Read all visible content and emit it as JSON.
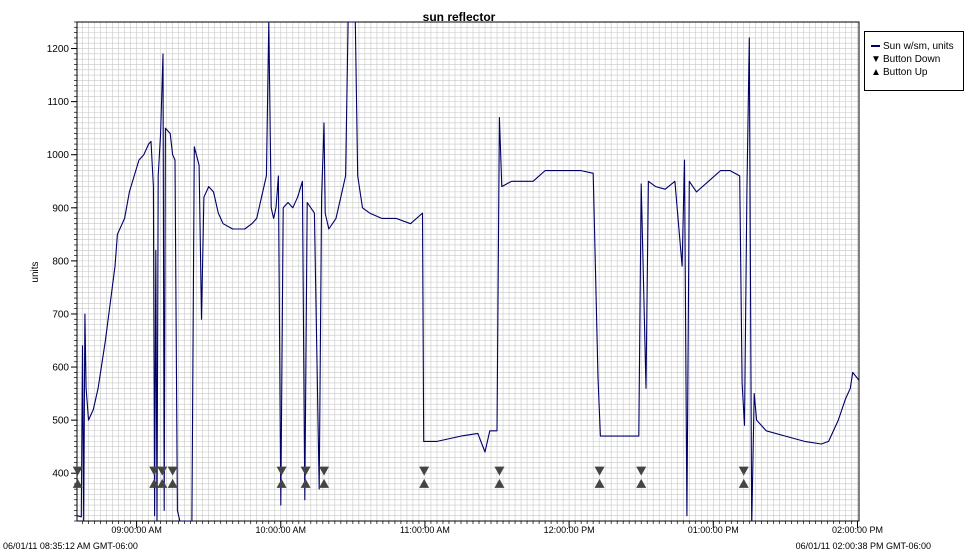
{
  "chart_data": {
    "type": "line",
    "title": "sun reflector",
    "ylabel": "units",
    "xlabel": "",
    "ylim": [
      310,
      1250
    ],
    "yticks": [
      400,
      500,
      600,
      700,
      800,
      900,
      1000,
      1100,
      1200
    ],
    "xlim": [
      "08:35:12",
      "14:00:38"
    ],
    "xticks": [
      {
        "t": "09:00:00",
        "label": "09:00:00 AM"
      },
      {
        "t": "10:00:00",
        "label": "10:00:00 AM"
      },
      {
        "t": "11:00:00",
        "label": "11:00:00 AM"
      },
      {
        "t": "12:00:00",
        "label": "12:00:00 PM"
      },
      {
        "t": "13:00:00",
        "label": "01:00:00 PM"
      },
      {
        "t": "14:00:00",
        "label": "02:00:00 PM"
      }
    ],
    "grid": true,
    "legend_position": "top-right",
    "colors": {
      "series": "#000066",
      "markers": "#444444",
      "grid": "#c8c8c8"
    },
    "series": [
      {
        "name": "Sun w/sm, units",
        "points": [
          [
            "08:35:12",
            320
          ],
          [
            "08:37:00",
            318
          ],
          [
            "08:37:30",
            640
          ],
          [
            "08:38:00",
            310
          ],
          [
            "08:38:30",
            700
          ],
          [
            "08:39:00",
            560
          ],
          [
            "08:40:00",
            500
          ],
          [
            "08:42:00",
            520
          ],
          [
            "08:44:00",
            560
          ],
          [
            "08:47:00",
            650
          ],
          [
            "08:49:00",
            720
          ],
          [
            "08:51:00",
            790
          ],
          [
            "08:52:00",
            850
          ],
          [
            "08:55:00",
            880
          ],
          [
            "08:57:00",
            930
          ],
          [
            "08:59:00",
            960
          ],
          [
            "09:01:00",
            990
          ],
          [
            "09:03:00",
            1000
          ],
          [
            "09:05:00",
            1020
          ],
          [
            "09:06:00",
            1025
          ],
          [
            "09:07:00",
            940
          ],
          [
            "09:07:30",
            320
          ],
          [
            "09:08:00",
            820
          ],
          [
            "09:08:30",
            310
          ],
          [
            "09:09:00",
            960
          ],
          [
            "09:10:00",
            1040
          ],
          [
            "09:11:00",
            1190
          ],
          [
            "09:11:30",
            330
          ],
          [
            "09:12:00",
            1050
          ],
          [
            "09:14:00",
            1040
          ],
          [
            "09:15:00",
            1000
          ],
          [
            "09:16:00",
            990
          ],
          [
            "09:17:00",
            330
          ],
          [
            "09:18:00",
            310
          ],
          [
            "09:23:00",
            310
          ],
          [
            "09:24:00",
            1015
          ],
          [
            "09:26:00",
            980
          ],
          [
            "09:27:00",
            690
          ],
          [
            "09:28:00",
            920
          ],
          [
            "09:30:00",
            940
          ],
          [
            "09:32:00",
            930
          ],
          [
            "09:34:00",
            890
          ],
          [
            "09:36:00",
            870
          ],
          [
            "09:40:00",
            860
          ],
          [
            "09:45:00",
            860
          ],
          [
            "09:48:00",
            870
          ],
          [
            "09:50:00",
            880
          ],
          [
            "09:52:00",
            920
          ],
          [
            "09:54:00",
            960
          ],
          [
            "09:55:00",
            1250
          ],
          [
            "09:56:00",
            900
          ],
          [
            "09:57:00",
            880
          ],
          [
            "09:58:00",
            900
          ],
          [
            "09:59:00",
            960
          ],
          [
            "10:00:00",
            340
          ],
          [
            "10:01:00",
            900
          ],
          [
            "10:03:00",
            910
          ],
          [
            "10:05:00",
            900
          ],
          [
            "10:07:00",
            920
          ],
          [
            "10:09:00",
            950
          ],
          [
            "10:10:00",
            350
          ],
          [
            "10:11:00",
            910
          ],
          [
            "10:14:00",
            890
          ],
          [
            "10:16:00",
            370
          ],
          [
            "10:17:00",
            920
          ],
          [
            "10:18:00",
            1060
          ],
          [
            "10:18:30",
            890
          ],
          [
            "10:20:00",
            860
          ],
          [
            "10:23:00",
            880
          ],
          [
            "10:27:00",
            960
          ],
          [
            "10:28:00",
            1250
          ],
          [
            "10:31:00",
            1250
          ],
          [
            "10:32:00",
            960
          ],
          [
            "10:34:00",
            900
          ],
          [
            "10:37:00",
            890
          ],
          [
            "10:42:00",
            880
          ],
          [
            "10:48:00",
            880
          ],
          [
            "10:54:00",
            870
          ],
          [
            "10:59:00",
            890
          ],
          [
            "10:59:30",
            460
          ],
          [
            "11:05:00",
            460
          ],
          [
            "11:15:00",
            470
          ],
          [
            "11:22:00",
            475
          ],
          [
            "11:25:00",
            440
          ],
          [
            "11:27:00",
            480
          ],
          [
            "11:30:00",
            480
          ],
          [
            "11:31:00",
            1070
          ],
          [
            "11:32:00",
            940
          ],
          [
            "11:36:00",
            950
          ],
          [
            "11:45:00",
            950
          ],
          [
            "11:50:00",
            970
          ],
          [
            "11:58:00",
            970
          ],
          [
            "12:05:00",
            970
          ],
          [
            "12:10:00",
            965
          ],
          [
            "12:12:00",
            580
          ],
          [
            "12:13:00",
            470
          ],
          [
            "12:20:00",
            470
          ],
          [
            "12:25:00",
            470
          ],
          [
            "12:29:00",
            470
          ],
          [
            "12:30:00",
            945
          ],
          [
            "12:32:00",
            560
          ],
          [
            "12:33:00",
            950
          ],
          [
            "12:36:00",
            940
          ],
          [
            "12:40:00",
            935
          ],
          [
            "12:44:00",
            950
          ],
          [
            "12:47:00",
            790
          ],
          [
            "12:48:00",
            990
          ],
          [
            "12:49:00",
            320
          ],
          [
            "12:50:00",
            950
          ],
          [
            "12:53:00",
            930
          ],
          [
            "12:58:00",
            950
          ],
          [
            "13:03:00",
            970
          ],
          [
            "13:07:00",
            970
          ],
          [
            "13:11:00",
            960
          ],
          [
            "13:12:00",
            570
          ],
          [
            "13:13:00",
            490
          ],
          [
            "13:14:00",
            930
          ],
          [
            "13:15:00",
            1220
          ],
          [
            "13:16:00",
            300
          ],
          [
            "13:17:00",
            550
          ],
          [
            "13:18:00",
            500
          ],
          [
            "13:22:00",
            480
          ],
          [
            "13:30:00",
            470
          ],
          [
            "13:38:00",
            460
          ],
          [
            "13:45:00",
            455
          ],
          [
            "13:48:00",
            460
          ],
          [
            "13:52:00",
            500
          ],
          [
            "13:55:00",
            540
          ],
          [
            "13:57:00",
            560
          ],
          [
            "13:58:00",
            590
          ],
          [
            "14:00:38",
            575
          ]
        ]
      },
      {
        "name": "Button Down",
        "marker": "triangle-down",
        "y": 405,
        "x": [
          "08:35:30",
          "09:07:20",
          "09:10:40",
          "09:15:00",
          "10:00:20",
          "10:10:20",
          "10:18:00",
          "10:59:40",
          "11:31:00",
          "12:12:40",
          "12:30:00",
          "13:12:40"
        ]
      },
      {
        "name": "Button Up",
        "marker": "triangle-up",
        "y": 380,
        "x": [
          "08:35:30",
          "09:07:20",
          "09:10:40",
          "09:15:00",
          "10:00:20",
          "10:10:20",
          "10:18:00",
          "10:59:40",
          "11:31:00",
          "12:12:40",
          "12:30:00",
          "13:12:40"
        ]
      }
    ]
  },
  "legend": {
    "items": [
      {
        "label": "Sun w/sm, units"
      },
      {
        "label": "Button Down"
      },
      {
        "label": "Button Up"
      }
    ]
  },
  "footer": {
    "start": "06/01/11 08:35:12 AM GMT-06:00",
    "end": "06/01/11 02:00:38 PM GMT-06:00"
  }
}
